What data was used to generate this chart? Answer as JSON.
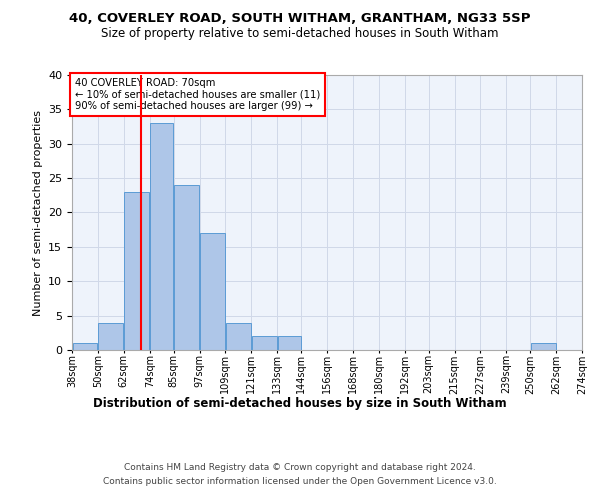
{
  "title_line1": "40, COVERLEY ROAD, SOUTH WITHAM, GRANTHAM, NG33 5SP",
  "title_line2": "Size of property relative to semi-detached houses in South Witham",
  "xlabel": "Distribution of semi-detached houses by size in South Witham",
  "ylabel": "Number of semi-detached properties",
  "footer_line1": "Contains HM Land Registry data © Crown copyright and database right 2024.",
  "footer_line2": "Contains public sector information licensed under the Open Government Licence v3.0.",
  "annotation_title": "40 COVERLEY ROAD: 70sqm",
  "annotation_line1": "← 10% of semi-detached houses are smaller (11)",
  "annotation_line2": "90% of semi-detached houses are larger (99) →",
  "property_size": 70,
  "bar_edges": [
    38,
    50,
    62,
    74,
    85,
    97,
    109,
    121,
    133,
    144,
    156,
    168,
    180,
    192,
    203,
    215,
    227,
    239,
    250,
    262,
    274
  ],
  "bar_heights": [
    1,
    4,
    23,
    33,
    24,
    17,
    4,
    2,
    2,
    0,
    0,
    0,
    0,
    0,
    0,
    0,
    0,
    0,
    1,
    0,
    0
  ],
  "bar_color": "#aec6e8",
  "bar_edge_color": "#5b9bd5",
  "marker_color": "#ff0000",
  "annotation_box_color": "#ff0000",
  "background_color": "#ffffff",
  "grid_color": "#d0d8e8",
  "ax_bg_color": "#eef3fb",
  "ylim": [
    0,
    40
  ],
  "yticks": [
    0,
    5,
    10,
    15,
    20,
    25,
    30,
    35,
    40
  ]
}
